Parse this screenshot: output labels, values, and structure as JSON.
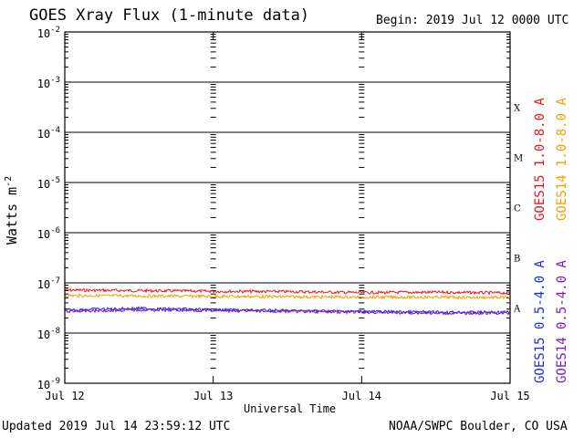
{
  "header": {
    "title": "GOES Xray Flux (1-minute data)",
    "begin": "Begin:  2019 Jul 12 0000 UTC"
  },
  "footer": {
    "updated": "Updated 2019 Jul 14 23:59:12 UTC",
    "credit": "NOAA/SWPC Boulder, CO USA"
  },
  "legend": {
    "goes15_long": "GOES15 1.0-8.0 A",
    "goes14_long": "GOES14 1.0-8.0 A",
    "goes15_short": "GOES15 0.5-4.0 A",
    "goes14_short": "GOES14 0.5-4.0 A"
  },
  "chart_data": {
    "type": "line",
    "title": "GOES Xray Flux (1-minute data)",
    "xlabel": "Universal Time",
    "ylabel": "Watts m-2",
    "yscale": "log",
    "ylim": [
      1e-09,
      0.01
    ],
    "xlim": [
      "2019-07-12",
      "2019-07-15"
    ],
    "grid": true,
    "x_ticks": [
      "Jul 12",
      "Jul 13",
      "Jul 14",
      "Jul 15"
    ],
    "y_ticks": [
      {
        "base": "10",
        "exp": "-9"
      },
      {
        "base": "10",
        "exp": "-8"
      },
      {
        "base": "10",
        "exp": "-7"
      },
      {
        "base": "10",
        "exp": "-6"
      },
      {
        "base": "10",
        "exp": "-5"
      },
      {
        "base": "10",
        "exp": "-4"
      },
      {
        "base": "10",
        "exp": "-3"
      },
      {
        "base": "10",
        "exp": "-2"
      }
    ],
    "flare_classes": [
      {
        "label": "A",
        "flux": 1e-08
      },
      {
        "label": "B",
        "flux": 1e-07
      },
      {
        "label": "C",
        "flux": 1e-06
      },
      {
        "label": "M",
        "flux": 1e-05
      },
      {
        "label": "X",
        "flux": 0.0001
      }
    ],
    "series": [
      {
        "name": "GOES15 1.0-8.0 A",
        "color": "#e8141e",
        "x": [
          "2019-07-12",
          "2019-07-12T12:00",
          "2019-07-13",
          "2019-07-13T12:00",
          "2019-07-14",
          "2019-07-14T12:00",
          "2019-07-15"
        ],
        "values": [
          7.2e-08,
          7e-08,
          6.8e-08,
          6.7e-08,
          6.4e-08,
          6.5e-08,
          6.3e-08
        ]
      },
      {
        "name": "GOES14 1.0-8.0 A",
        "color": "#f0a000",
        "x": [
          "2019-07-12",
          "2019-07-12T12:00",
          "2019-07-13",
          "2019-07-13T12:00",
          "2019-07-14",
          "2019-07-14T12:00",
          "2019-07-15"
        ],
        "values": [
          5.6e-08,
          5.5e-08,
          5.4e-08,
          5.3e-08,
          5.2e-08,
          5.2e-08,
          5.1e-08
        ]
      },
      {
        "name": "GOES15 0.5-4.0 A",
        "color": "#1f2ad8",
        "x": [
          "2019-07-12",
          "2019-07-12T12:00",
          "2019-07-13",
          "2019-07-13T12:00",
          "2019-07-14",
          "2019-07-14T12:00",
          "2019-07-15"
        ],
        "values": [
          2.9e-08,
          3.1e-08,
          2.9e-08,
          2.8e-08,
          2.7e-08,
          2.6e-08,
          2.6e-08
        ]
      },
      {
        "name": "GOES14 0.5-4.0 A",
        "color": "#7a1ab8",
        "x": [
          "2019-07-12",
          "2019-07-12T12:00",
          "2019-07-13",
          "2019-07-13T12:00",
          "2019-07-14",
          "2019-07-14T12:00",
          "2019-07-15"
        ],
        "values": [
          2.7e-08,
          2.9e-08,
          2.8e-08,
          2.7e-08,
          2.6e-08,
          2.5e-08,
          2.5e-08
        ]
      }
    ]
  }
}
